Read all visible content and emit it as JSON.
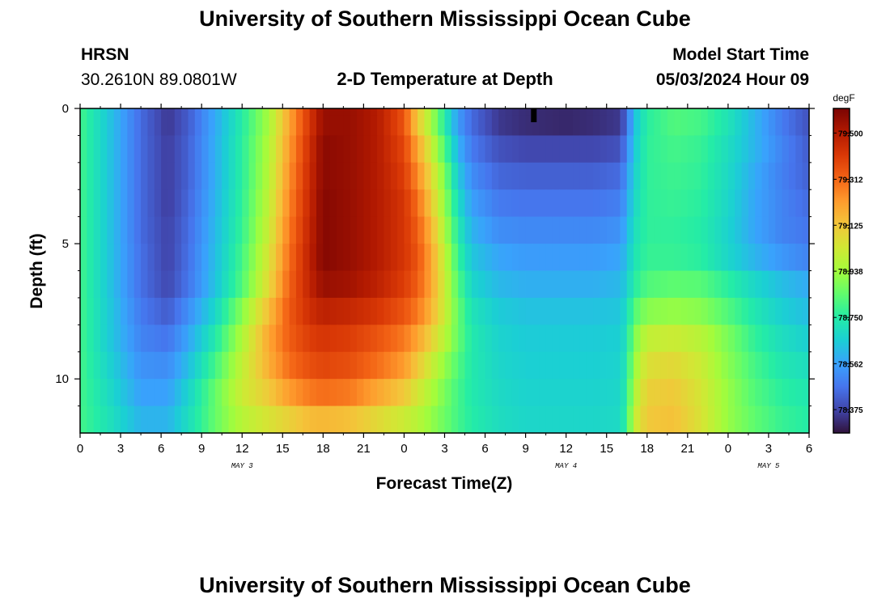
{
  "page": {
    "title": "University of Southern Mississippi Ocean Cube",
    "station": "HRSN",
    "coords": "30.2610N  89.0801W",
    "subtitle": "2-D Temperature at Depth",
    "model_label": "Model Start Time",
    "model_time": "05/03/2024 Hour 09",
    "footer_title": "University of Southern Mississippi Ocean Cube"
  },
  "chart_data": {
    "type": "heatmap",
    "xlabel": "Forecast Time(Z)",
    "ylabel": "Depth (ft)",
    "x_tick_labels": [
      "0",
      "3",
      "6",
      "9",
      "12",
      "15",
      "18",
      "21",
      "0",
      "3",
      "6",
      "9",
      "12",
      "15",
      "18",
      "21",
      "0",
      "3",
      "6"
    ],
    "y_tick_labels": [
      "0",
      "5",
      "10"
    ],
    "y_tick_values": [
      0,
      5,
      10
    ],
    "day_labels": [
      "MAY 3",
      "MAY 4",
      "MAY 5"
    ],
    "day_label_hours": [
      12,
      36,
      51
    ],
    "xlim_hours": [
      0,
      54
    ],
    "ylim_ft": [
      0,
      12
    ],
    "colorbar": {
      "unit": "degF",
      "range": [
        78.28,
        79.6
      ],
      "tick_labels": [
        "79.500",
        "79.312",
        "79.125",
        "78.938",
        "78.750",
        "78.562",
        "78.375"
      ],
      "tick_values": [
        79.5,
        79.312,
        79.125,
        78.938,
        78.75,
        78.562,
        78.375
      ]
    },
    "depth_levels_ft": [
      0,
      0.5,
      1.5,
      2.5,
      3.5,
      4.5,
      5.5,
      6.5,
      7.5,
      8.5,
      9.5,
      10.5,
      11.5
    ],
    "key_hours": [
      0,
      2,
      4.5,
      6.5,
      8,
      10,
      12,
      14,
      15.5,
      17,
      18,
      20,
      22,
      24,
      25,
      26,
      27,
      28,
      29,
      31,
      33,
      36,
      38,
      40,
      40.5,
      41,
      42,
      44,
      46,
      48,
      50,
      52,
      54
    ],
    "temperature_degF_by_depth": [
      [
        78.8,
        78.65,
        78.45,
        78.35,
        78.42,
        78.58,
        78.75,
        78.95,
        79.2,
        79.42,
        79.55,
        79.55,
        79.5,
        79.35,
        79.12,
        78.95,
        78.75,
        78.55,
        78.45,
        78.35,
        78.33,
        78.32,
        78.33,
        78.35,
        78.45,
        78.62,
        78.76,
        78.82,
        78.8,
        78.72,
        78.6,
        78.48,
        78.4
      ],
      [
        78.8,
        78.65,
        78.45,
        78.35,
        78.42,
        78.58,
        78.75,
        78.95,
        79.2,
        79.42,
        79.55,
        79.55,
        79.5,
        79.35,
        79.12,
        78.95,
        78.75,
        78.55,
        78.45,
        78.35,
        78.33,
        78.32,
        78.33,
        78.35,
        78.45,
        78.62,
        78.76,
        78.82,
        78.8,
        78.72,
        78.6,
        78.48,
        78.4
      ],
      [
        78.8,
        78.65,
        78.45,
        78.36,
        78.43,
        78.59,
        78.76,
        78.97,
        79.22,
        79.44,
        79.57,
        79.55,
        79.5,
        79.38,
        79.2,
        79.02,
        78.82,
        78.6,
        78.48,
        78.4,
        78.38,
        78.38,
        78.38,
        78.4,
        78.5,
        78.64,
        78.77,
        78.8,
        78.78,
        78.7,
        78.6,
        78.5,
        78.42
      ],
      [
        78.8,
        78.65,
        78.45,
        78.36,
        78.43,
        78.59,
        78.76,
        78.98,
        79.24,
        79.45,
        79.57,
        79.55,
        79.5,
        79.4,
        79.25,
        79.08,
        78.88,
        78.65,
        78.52,
        78.44,
        78.43,
        78.43,
        78.43,
        78.45,
        78.54,
        78.66,
        78.77,
        78.79,
        78.77,
        78.69,
        78.58,
        78.49,
        78.43
      ],
      [
        78.8,
        78.65,
        78.45,
        78.36,
        78.44,
        78.6,
        78.77,
        79.0,
        79.26,
        79.46,
        79.58,
        79.55,
        79.5,
        79.42,
        79.3,
        79.12,
        78.92,
        78.7,
        78.56,
        78.48,
        78.47,
        78.47,
        78.47,
        78.49,
        78.57,
        78.68,
        78.77,
        78.78,
        78.76,
        78.68,
        78.57,
        78.5,
        78.45
      ],
      [
        78.8,
        78.65,
        78.45,
        78.37,
        78.45,
        78.61,
        78.78,
        79.02,
        79.28,
        79.47,
        79.58,
        79.55,
        79.5,
        79.42,
        79.33,
        79.17,
        78.96,
        78.74,
        78.6,
        78.52,
        78.51,
        78.51,
        78.51,
        78.53,
        78.6,
        78.7,
        78.77,
        78.77,
        78.75,
        78.67,
        78.57,
        78.5,
        78.47
      ],
      [
        78.8,
        78.65,
        78.46,
        78.37,
        78.46,
        78.62,
        78.8,
        79.05,
        79.3,
        79.48,
        79.58,
        79.55,
        79.5,
        79.42,
        79.35,
        79.2,
        79.0,
        78.78,
        78.64,
        78.57,
        78.55,
        78.55,
        78.55,
        78.57,
        78.63,
        78.72,
        78.78,
        78.78,
        78.76,
        78.68,
        78.6,
        78.54,
        78.5
      ],
      [
        78.8,
        78.65,
        78.46,
        78.38,
        78.47,
        78.63,
        78.82,
        79.08,
        79.32,
        79.47,
        79.55,
        79.53,
        79.48,
        79.4,
        79.33,
        79.2,
        79.02,
        78.82,
        78.68,
        78.61,
        78.59,
        78.59,
        78.59,
        78.61,
        78.66,
        78.75,
        78.82,
        78.84,
        78.83,
        78.76,
        78.68,
        78.62,
        78.58
      ],
      [
        78.8,
        78.66,
        78.48,
        78.42,
        78.52,
        78.68,
        78.9,
        79.15,
        79.34,
        79.44,
        79.48,
        79.46,
        79.42,
        79.35,
        79.28,
        79.17,
        79.02,
        78.85,
        78.72,
        78.65,
        78.63,
        78.63,
        78.63,
        78.64,
        78.7,
        78.82,
        78.9,
        78.92,
        78.9,
        78.82,
        78.73,
        78.66,
        78.62
      ],
      [
        78.8,
        78.66,
        78.5,
        78.47,
        78.57,
        78.74,
        78.96,
        79.2,
        79.33,
        79.4,
        79.42,
        79.4,
        79.35,
        79.28,
        79.2,
        79.1,
        78.98,
        78.85,
        78.74,
        78.67,
        78.65,
        78.65,
        78.65,
        78.66,
        78.72,
        78.88,
        79.0,
        79.02,
        78.98,
        78.88,
        78.77,
        78.7,
        78.66
      ],
      [
        78.8,
        78.68,
        78.53,
        78.52,
        78.62,
        78.8,
        79.0,
        79.18,
        79.3,
        79.36,
        79.38,
        79.36,
        79.3,
        79.22,
        79.12,
        79.02,
        78.92,
        78.82,
        78.74,
        78.68,
        78.66,
        78.66,
        78.66,
        78.67,
        78.74,
        78.92,
        79.06,
        79.08,
        79.02,
        78.9,
        78.8,
        78.73,
        78.7
      ],
      [
        78.8,
        78.7,
        78.56,
        78.56,
        78.67,
        78.85,
        79.02,
        79.12,
        79.22,
        79.28,
        79.3,
        79.28,
        79.2,
        79.12,
        79.04,
        78.96,
        78.88,
        78.8,
        78.74,
        78.69,
        78.67,
        78.67,
        78.67,
        78.68,
        78.76,
        78.96,
        79.1,
        79.12,
        79.04,
        78.92,
        78.82,
        78.76,
        78.73
      ],
      [
        78.8,
        78.72,
        78.6,
        78.6,
        78.7,
        78.85,
        78.98,
        79.05,
        79.1,
        79.15,
        79.16,
        79.14,
        79.08,
        79.02,
        78.98,
        78.92,
        78.86,
        78.8,
        78.75,
        78.7,
        78.68,
        78.68,
        78.68,
        78.69,
        78.78,
        79.0,
        79.12,
        79.14,
        79.05,
        78.92,
        78.84,
        78.78,
        78.75
      ]
    ]
  },
  "colors": {
    "colormap": [
      "#30123b",
      "#4145ab",
      "#4675ed",
      "#39a2fc",
      "#1bcfd4",
      "#24eca6",
      "#61fc6c",
      "#a4fc3b",
      "#d1e834",
      "#f3c63a",
      "#fe9b2d",
      "#f36315",
      "#d93806",
      "#b11901",
      "#7a0403"
    ]
  }
}
